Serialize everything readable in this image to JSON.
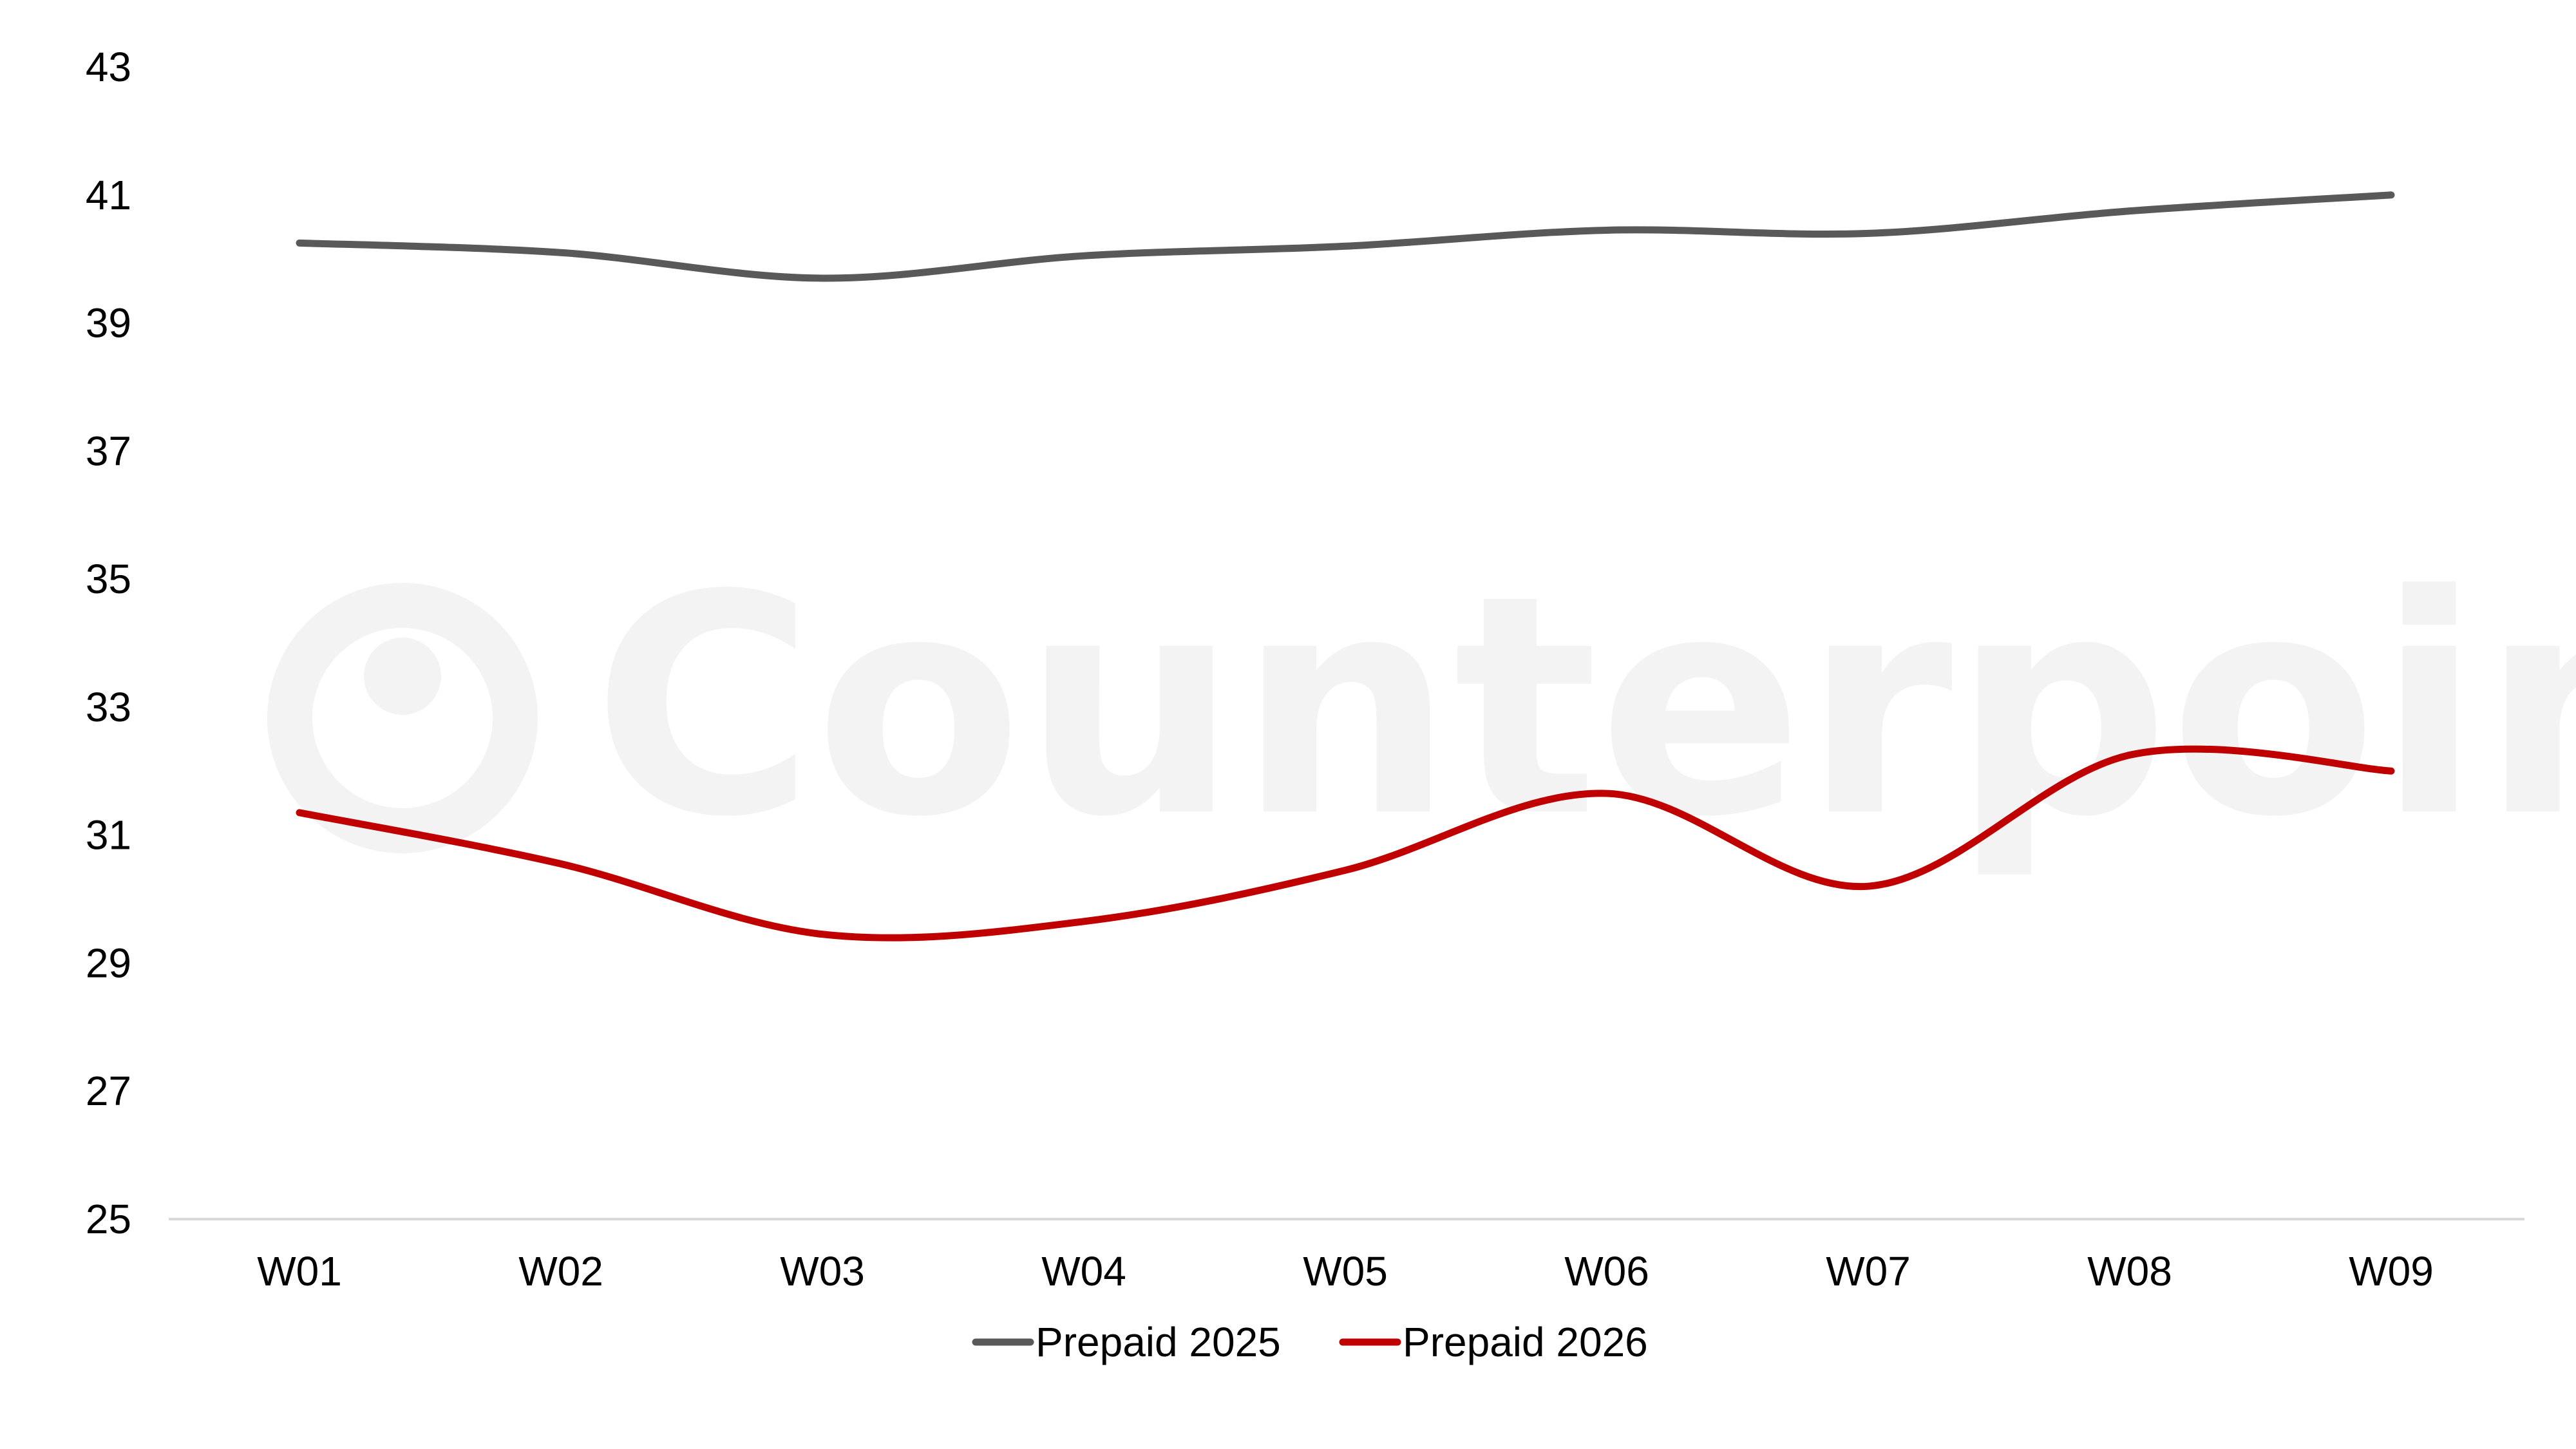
{
  "chart_data": {
    "type": "line",
    "title": "",
    "xlabel": "",
    "ylabel": "",
    "categories": [
      "W01",
      "W02",
      "W03",
      "W04",
      "W05",
      "W06",
      "W07",
      "W08",
      "W09"
    ],
    "ylim": [
      25,
      43
    ],
    "yticks": [
      25,
      27,
      29,
      31,
      33,
      35,
      37,
      39,
      41,
      43
    ],
    "grid": false,
    "smooth": true,
    "legend_position": "bottom",
    "series": [
      {
        "name": "Prepaid 2025",
        "color": "#595959",
        "values": [
          40.25,
          40.1,
          39.7,
          40.05,
          40.2,
          40.45,
          40.4,
          40.75,
          41.0
        ]
      },
      {
        "name": "Prepaid 2026",
        "color": "#c00000",
        "values": [
          31.35,
          30.55,
          29.45,
          29.65,
          30.45,
          31.65,
          30.2,
          32.25,
          32.0
        ]
      }
    ],
    "watermark": {
      "text": "Counterpoint",
      "icon": "counterpoint-logo-icon"
    }
  }
}
